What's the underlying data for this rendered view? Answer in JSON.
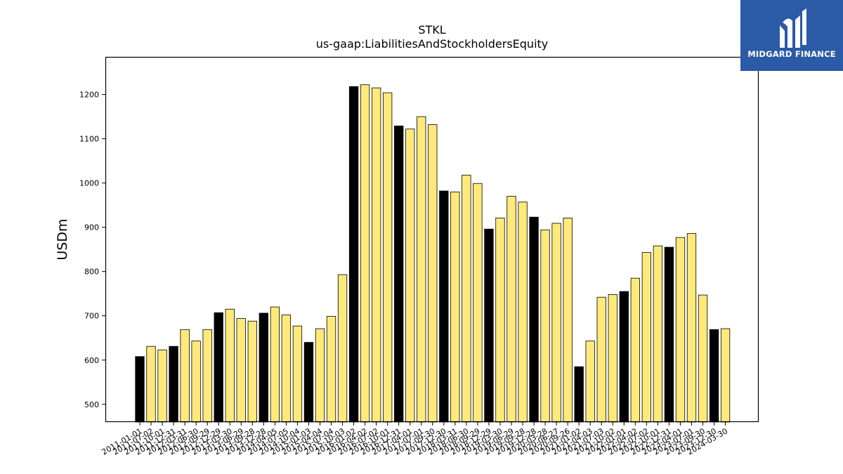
{
  "chart_data": {
    "type": "bar",
    "title": "STKL",
    "subtitle": "us-gaap:LiabilitiesAndStockholdersEquity",
    "xlabel": "",
    "ylabel": "USDm",
    "ylim": [
      460,
      1285
    ],
    "yticks": [
      500,
      600,
      700,
      800,
      900,
      1000,
      1100,
      1200
    ],
    "grid": false,
    "colors": {
      "annual": "#000000",
      "quarterly": "#ffe97a",
      "edge": "#000000"
    },
    "categories": [
      "2011-01-01",
      "2011-07-02",
      "2011-10-01",
      "2011-12-31",
      "2012-03-31",
      "2012-06-30",
      "2012-09-29",
      "2012-12-29",
      "2013-03-30",
      "2013-06-29",
      "2013-09-28",
      "2013-12-28",
      "2014-04-05",
      "2014-07-05",
      "2014-10-04",
      "2015-01-03",
      "2015-04-04",
      "2015-07-04",
      "2015-10-03",
      "2016-01-02",
      "2016-04-02",
      "2016-07-02",
      "2016-10-01",
      "2016-12-31",
      "2017-04-01",
      "2017-07-01",
      "2017-09-30",
      "2017-12-30",
      "2018-03-31",
      "2018-06-30",
      "2018-09-29",
      "2018-12-29",
      "2019-03-30",
      "2019-06-29",
      "2019-09-28",
      "2019-12-28",
      "2020-03-28",
      "2020-06-27",
      "2020-09-26",
      "2021-01-02",
      "2021-04-03",
      "2021-07-03",
      "2021-10-02",
      "2022-01-01",
      "2022-04-02",
      "2022-07-02",
      "2022-10-01",
      "2022-12-31",
      "2023-04-01",
      "2023-07-01",
      "2023-09-30",
      "2023-12-30",
      "2024-03-30"
    ],
    "values": [
      608,
      631,
      623,
      631,
      669,
      643,
      669,
      707,
      715,
      694,
      688,
      706,
      720,
      702,
      677,
      640,
      671,
      699,
      793,
      1218,
      1222,
      1215,
      1204,
      1129,
      1122,
      1150,
      1132,
      982,
      980,
      1018,
      999,
      896,
      921,
      970,
      957,
      923,
      894,
      909,
      921,
      585,
      643,
      742,
      748,
      755,
      785,
      843,
      858,
      855,
      877,
      886,
      747,
      669,
      671
    ],
    "annual_flags": [
      1,
      0,
      0,
      1,
      0,
      0,
      0,
      1,
      0,
      0,
      0,
      1,
      0,
      0,
      0,
      1,
      0,
      0,
      0,
      1,
      0,
      0,
      0,
      1,
      0,
      0,
      0,
      1,
      0,
      0,
      0,
      1,
      0,
      0,
      0,
      1,
      0,
      0,
      0,
      1,
      0,
      0,
      0,
      1,
      0,
      0,
      0,
      1,
      0,
      0,
      0,
      1,
      0
    ]
  },
  "logo": {
    "text": "MIDGARD FINANCE",
    "background": "#2b5aa6"
  }
}
